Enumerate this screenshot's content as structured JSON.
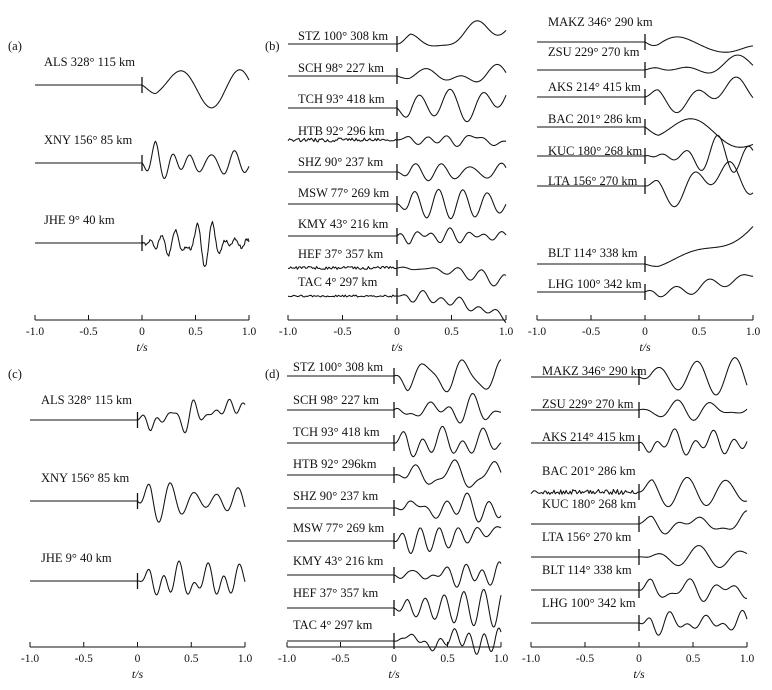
{
  "chart_data": {
    "type": "line",
    "description_of_traces": "waveform traces per station; pre-onset flat line, arrival at t=0",
    "panels": [
      {
        "id": "a",
        "label": "(a)",
        "xlim": [
          -1.0,
          1.0
        ],
        "xticks": [
          "-1.0",
          "-0.5",
          "0",
          "0.5",
          "1.0"
        ],
        "xlabel": "t/s",
        "stations": [
          "ALS 328° 115 km",
          "XNY 156° 85 km",
          "JHE 9° 40 km"
        ]
      },
      {
        "id": "b",
        "label": "(b)",
        "xlim": [
          -1.0,
          1.0
        ],
        "xticks": [
          "-1.0",
          "-0.5",
          "0",
          "0.5",
          "1.0"
        ],
        "xlabel": "t/s",
        "stations": [
          "STZ 100° 308 km",
          "SCH 98° 227 km",
          "TCH 93° 418 km",
          "HTB 92° 296 km",
          "SHZ 90° 237 km",
          "MSW 77° 269 km",
          "KMY 43° 216 km",
          "HEF 37° 357 km",
          "TAC 4° 297 km"
        ]
      },
      {
        "id": "b2",
        "label": "",
        "xlim": [
          -1.0,
          1.0
        ],
        "xticks": [
          "-1.0",
          "-0.5",
          "0",
          "0.5",
          "1.0"
        ],
        "xlabel": "t/s",
        "stations": [
          "MAKZ 346° 290 km",
          "ZSU 229° 270 km",
          "AKS 214° 415 km",
          "BAC 201° 286 km",
          "KUC 180° 268 km",
          "LTA 156° 270 km",
          "BLT 114° 338 km",
          "LHG 100° 342 km"
        ]
      },
      {
        "id": "c",
        "label": "(c)",
        "xlim": [
          -1.0,
          1.0
        ],
        "xticks": [
          "-1.0",
          "-0.5",
          "0",
          "0.5",
          "1.0"
        ],
        "xlabel": "t/s",
        "stations": [
          "ALS 328° 115 km",
          "XNY 156° 85 km",
          "JHE 9° 40 km"
        ]
      },
      {
        "id": "d",
        "label": "(d)",
        "xlim": [
          -1.0,
          1.0
        ],
        "xticks": [
          "-1.0",
          "-0.5",
          "0",
          "0.5",
          "1.0"
        ],
        "xlabel": "t/s",
        "stations": [
          "STZ 100° 308 km",
          "SCH 98° 227 km",
          "TCH 93° 418 km",
          "HTB 92° 296km",
          "SHZ 90° 237 km",
          "MSW 77° 269 km",
          "KMY 43° 216 km",
          "HEF 37° 357 km",
          "TAC 4° 297 km"
        ]
      },
      {
        "id": "d2",
        "label": "",
        "xlim": [
          -1.0,
          1.0
        ],
        "xticks": [
          "-1.0",
          "-0.5",
          "0",
          "0.5",
          "1.0"
        ],
        "xlabel": "t/s",
        "stations": [
          "MAKZ 346° 290 km",
          "ZSU 229° 270 km",
          "AKS 214° 415 km",
          "BAC 201° 286 km",
          "KUC 180° 268 km",
          "LTA 156° 270 km",
          "BLT 114° 338 km",
          "LHG 100° 342 km"
        ]
      }
    ]
  }
}
